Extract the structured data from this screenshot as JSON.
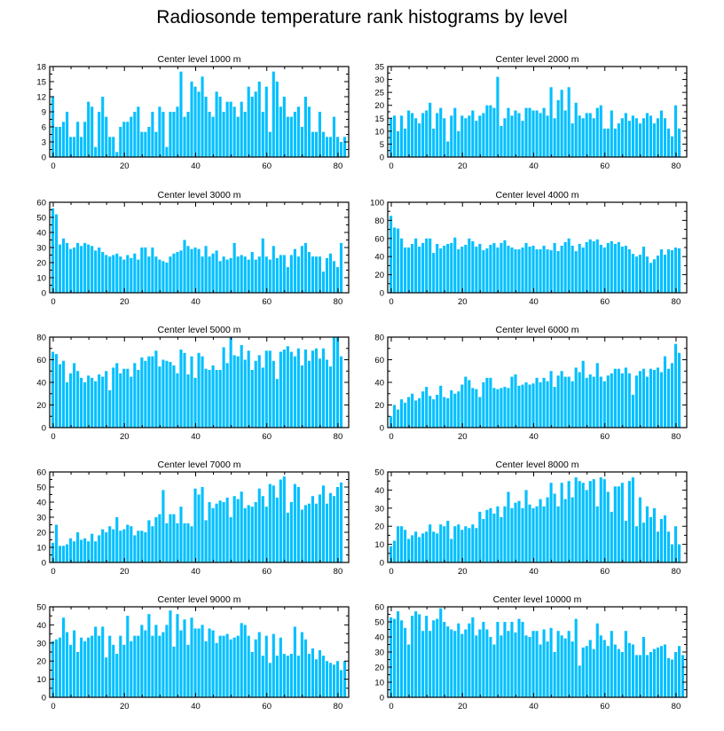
{
  "figure": {
    "title": "Radiosonde temperature rank histograms by level",
    "bar_color": "#00bfff",
    "frame_color": "#000000"
  },
  "chart_data": [
    {
      "type": "bar",
      "title": "Center level 1000 m",
      "xlim": [
        -1,
        83
      ],
      "ylim": [
        0,
        18
      ],
      "xticks": [
        0,
        20,
        40,
        60,
        80
      ],
      "yticks": [
        0,
        3,
        6,
        9,
        12,
        15,
        18
      ],
      "values": [
        12,
        6,
        6,
        7,
        9,
        4,
        4,
        7,
        4,
        7,
        11,
        10,
        2,
        9,
        12,
        8,
        4,
        4,
        1,
        6,
        7,
        7,
        8,
        9,
        10,
        5,
        5,
        6,
        9,
        5,
        10,
        9,
        2,
        9,
        9,
        10,
        17,
        8,
        9,
        15,
        14,
        13,
        16,
        12,
        9,
        8,
        13,
        12,
        9,
        11,
        11,
        10,
        8,
        11,
        9,
        14,
        12,
        13,
        15,
        9,
        14,
        5,
        17,
        15,
        10,
        12,
        8,
        8,
        9,
        10,
        6,
        12,
        10,
        5,
        5,
        9,
        5,
        4,
        4,
        8,
        4,
        3,
        4
      ]
    },
    {
      "type": "bar",
      "title": "Center level 2000 m",
      "xlim": [
        -1,
        83
      ],
      "ylim": [
        0,
        35
      ],
      "xticks": [
        0,
        20,
        40,
        60,
        80
      ],
      "yticks": [
        0,
        5,
        10,
        15,
        20,
        25,
        30,
        35
      ],
      "values": [
        15,
        16,
        10,
        16,
        11,
        18,
        17,
        15,
        13,
        17,
        18,
        21,
        11,
        17,
        19,
        15,
        6,
        16,
        19,
        10,
        16,
        15,
        16,
        18,
        14,
        16,
        17,
        20,
        20,
        19,
        31,
        12,
        15,
        19,
        16,
        18,
        17,
        14,
        19,
        19,
        18,
        18,
        17,
        19,
        16,
        27,
        15,
        22,
        26,
        18,
        27,
        13,
        21,
        16,
        15,
        17,
        17,
        15,
        19,
        20,
        11,
        11,
        18,
        11,
        13,
        15,
        17,
        14,
        16,
        15,
        13,
        15,
        17,
        16,
        13,
        15,
        18,
        15,
        11,
        8,
        20,
        11
      ]
    },
    {
      "type": "bar",
      "title": "Center level 3000 m",
      "xlim": [
        -1,
        83
      ],
      "ylim": [
        0,
        60
      ],
      "xticks": [
        0,
        20,
        40,
        60,
        80
      ],
      "yticks": [
        0,
        10,
        20,
        30,
        40,
        50,
        60
      ],
      "values": [
        56,
        52,
        32,
        36,
        33,
        29,
        30,
        33,
        31,
        33,
        32,
        31,
        28,
        30,
        27,
        25,
        24,
        25,
        26,
        24,
        22,
        25,
        23,
        26,
        22,
        30,
        30,
        24,
        30,
        24,
        22,
        21,
        20,
        24,
        26,
        27,
        28,
        35,
        31,
        29,
        30,
        29,
        24,
        31,
        24,
        26,
        28,
        21,
        24,
        22,
        23,
        33,
        24,
        25,
        24,
        22,
        27,
        22,
        24,
        36,
        24,
        22,
        31,
        23,
        25,
        25,
        17,
        25,
        29,
        24,
        31,
        33,
        27,
        24,
        24,
        24,
        14,
        23,
        26,
        21,
        17,
        33
      ]
    },
    {
      "type": "bar",
      "title": "Center level 4000 m",
      "xlim": [
        -1,
        83
      ],
      "ylim": [
        0,
        100
      ],
      "xticks": [
        0,
        20,
        40,
        60,
        80
      ],
      "yticks": [
        0,
        20,
        40,
        60,
        80,
        100
      ],
      "values": [
        85,
        72,
        71,
        60,
        50,
        50,
        54,
        60,
        51,
        55,
        60,
        60,
        44,
        54,
        49,
        52,
        54,
        55,
        61,
        48,
        51,
        53,
        60,
        57,
        51,
        54,
        47,
        49,
        53,
        55,
        50,
        55,
        58,
        52,
        50,
        48,
        48,
        50,
        55,
        51,
        52,
        48,
        48,
        52,
        48,
        47,
        55,
        46,
        52,
        56,
        60,
        52,
        46,
        54,
        50,
        56,
        59,
        57,
        59,
        53,
        50,
        55,
        57,
        54,
        56,
        51,
        52,
        48,
        43,
        40,
        42,
        51,
        40,
        33,
        37,
        41,
        48,
        42,
        48,
        47,
        50,
        49
      ]
    },
    {
      "type": "bar",
      "title": "Center level 5000 m",
      "xlim": [
        -1,
        83
      ],
      "ylim": [
        0,
        80
      ],
      "xticks": [
        0,
        20,
        40,
        60,
        80
      ],
      "yticks": [
        0,
        20,
        40,
        60,
        80
      ],
      "values": [
        67,
        65,
        56,
        59,
        40,
        48,
        57,
        50,
        44,
        40,
        46,
        44,
        41,
        47,
        45,
        50,
        33,
        53,
        57,
        48,
        52,
        52,
        45,
        57,
        51,
        62,
        59,
        63,
        63,
        68,
        54,
        60,
        59,
        58,
        55,
        48,
        69,
        66,
        47,
        63,
        44,
        66,
        63,
        52,
        51,
        55,
        51,
        51,
        71,
        57,
        80,
        64,
        63,
        73,
        60,
        68,
        51,
        59,
        64,
        53,
        68,
        68,
        59,
        43,
        67,
        69,
        72,
        67,
        63,
        70,
        55,
        69,
        59,
        68,
        70,
        61,
        70,
        60,
        54,
        80,
        80,
        63
      ]
    },
    {
      "type": "bar",
      "title": "Center level 6000 m",
      "xlim": [
        -1,
        83
      ],
      "ylim": [
        0,
        80
      ],
      "xticks": [
        0,
        20,
        40,
        60,
        80
      ],
      "yticks": [
        0,
        20,
        40,
        60,
        80
      ],
      "values": [
        10,
        20,
        16,
        25,
        22,
        27,
        30,
        24,
        26,
        32,
        36,
        28,
        25,
        29,
        37,
        27,
        26,
        33,
        30,
        32,
        38,
        45,
        42,
        35,
        34,
        27,
        40,
        44,
        44,
        35,
        34,
        35,
        36,
        35,
        45,
        47,
        37,
        38,
        40,
        38,
        39,
        44,
        40,
        44,
        41,
        50,
        36,
        46,
        50,
        45,
        45,
        41,
        53,
        49,
        59,
        44,
        47,
        45,
        57,
        45,
        41,
        46,
        48,
        52,
        52,
        48,
        53,
        48,
        29,
        46,
        50,
        52,
        45,
        52,
        51,
        53,
        49,
        63,
        52,
        57,
        74,
        66
      ]
    },
    {
      "type": "bar",
      "title": "Center level 7000 m",
      "xlim": [
        -1,
        83
      ],
      "ylim": [
        0,
        60
      ],
      "xticks": [
        0,
        20,
        40,
        60,
        80
      ],
      "yticks": [
        0,
        10,
        20,
        30,
        40,
        50,
        60
      ],
      "values": [
        13,
        25,
        11,
        11,
        12,
        16,
        14,
        20,
        15,
        16,
        14,
        19,
        14,
        18,
        22,
        20,
        24,
        22,
        30,
        21,
        22,
        25,
        24,
        18,
        21,
        21,
        20,
        28,
        24,
        30,
        32,
        48,
        26,
        32,
        32,
        26,
        37,
        26,
        26,
        24,
        49,
        45,
        50,
        28,
        40,
        36,
        39,
        41,
        40,
        43,
        30,
        44,
        42,
        47,
        36,
        38,
        37,
        40,
        49,
        44,
        37,
        52,
        51,
        43,
        55,
        57,
        33,
        40,
        52,
        50,
        35,
        38,
        39,
        44,
        39,
        45,
        51,
        39,
        46,
        44,
        50,
        53
      ]
    },
    {
      "type": "bar",
      "title": "Center level 8000 m",
      "xlim": [
        -1,
        83
      ],
      "ylim": [
        0,
        50
      ],
      "xticks": [
        0,
        20,
        40,
        60,
        80
      ],
      "yticks": [
        0,
        10,
        20,
        30,
        40,
        50
      ],
      "values": [
        9,
        12,
        20,
        20,
        18,
        13,
        15,
        17,
        14,
        16,
        17,
        21,
        17,
        16,
        21,
        20,
        23,
        13,
        20,
        21,
        18,
        20,
        19,
        21,
        19,
        28,
        24,
        29,
        30,
        27,
        31,
        25,
        31,
        39,
        30,
        33,
        34,
        30,
        40,
        32,
        30,
        31,
        35,
        31,
        36,
        44,
        38,
        31,
        44,
        35,
        45,
        36,
        47,
        45,
        44,
        40,
        45,
        46,
        31,
        47,
        46,
        39,
        28,
        42,
        42,
        44,
        23,
        45,
        47,
        20,
        36,
        22,
        31,
        25,
        30,
        17,
        24,
        26,
        17,
        10,
        20,
        10
      ]
    },
    {
      "type": "bar",
      "title": "Center level 9000 m",
      "xlim": [
        -1,
        83
      ],
      "ylim": [
        0,
        50
      ],
      "xticks": [
        0,
        20,
        40,
        60,
        80
      ],
      "yticks": [
        0,
        10,
        20,
        30,
        40,
        50
      ],
      "values": [
        31,
        32,
        33,
        44,
        36,
        29,
        37,
        25,
        33,
        31,
        33,
        34,
        39,
        34,
        39,
        22,
        34,
        29,
        24,
        34,
        29,
        45,
        31,
        34,
        34,
        40,
        37,
        46,
        34,
        40,
        34,
        36,
        40,
        48,
        28,
        46,
        37,
        43,
        29,
        44,
        38,
        38,
        40,
        31,
        38,
        37,
        30,
        34,
        34,
        35,
        32,
        33,
        34,
        41,
        40,
        34,
        25,
        32,
        36,
        23,
        34,
        19,
        35,
        23,
        33,
        24,
        23,
        24,
        39,
        23,
        36,
        32,
        24,
        27,
        21,
        26,
        23,
        20,
        19,
        18,
        20,
        15,
        20
      ]
    },
    {
      "type": "bar",
      "title": "Center level 10000 m",
      "xlim": [
        -1,
        83
      ],
      "ylim": [
        0,
        60
      ],
      "xticks": [
        0,
        20,
        40,
        60,
        80
      ],
      "yticks": [
        0,
        10,
        20,
        30,
        40,
        50,
        60
      ],
      "values": [
        53,
        52,
        57,
        51,
        46,
        35,
        54,
        57,
        55,
        44,
        54,
        44,
        51,
        52,
        59,
        50,
        47,
        45,
        44,
        49,
        42,
        45,
        49,
        53,
        41,
        45,
        50,
        45,
        40,
        35,
        50,
        41,
        50,
        44,
        50,
        43,
        52,
        50,
        41,
        40,
        44,
        44,
        35,
        45,
        37,
        46,
        30,
        44,
        41,
        39,
        44,
        37,
        52,
        21,
        33,
        34,
        38,
        32,
        49,
        41,
        38,
        34,
        44,
        35,
        32,
        30,
        44,
        36,
        35,
        28,
        28,
        40,
        28,
        30,
        32,
        33,
        34,
        35,
        26,
        25,
        30,
        34,
        28
      ]
    }
  ]
}
